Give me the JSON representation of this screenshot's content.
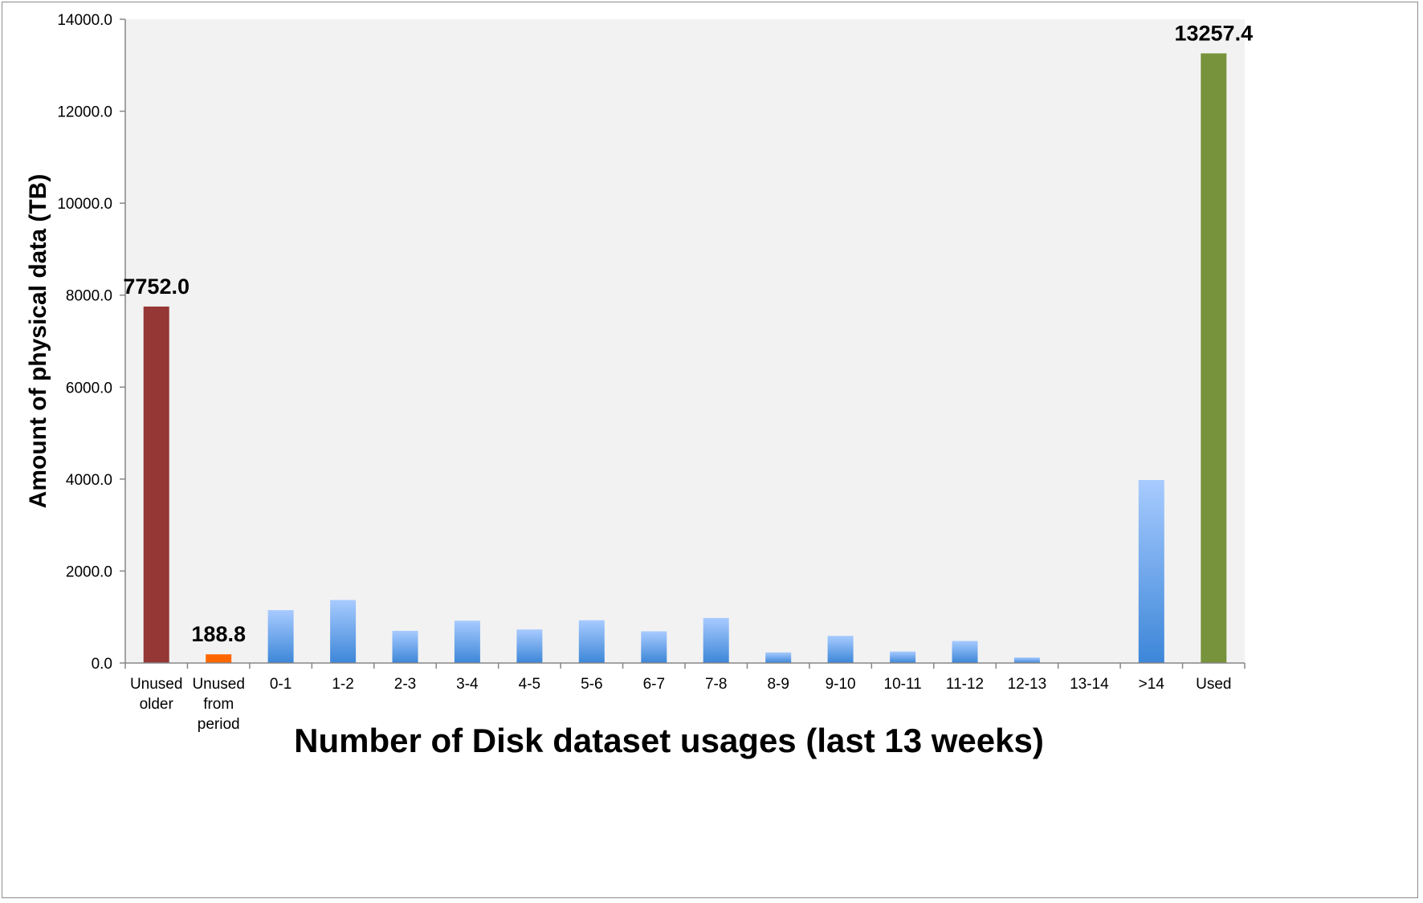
{
  "chart_data": {
    "type": "bar",
    "title": "",
    "xlabel": "Number of Disk dataset usages (last 13 weeks)",
    "ylabel": "Amount of physical data (TB)",
    "ylim": [
      0,
      14000
    ],
    "yticks": [
      "0.0",
      "2000.0",
      "4000.0",
      "6000.0",
      "8000.0",
      "10000.0",
      "12000.0",
      "14000.0"
    ],
    "categories": [
      [
        "Unused",
        "older"
      ],
      [
        "Unused",
        "from",
        "period"
      ],
      [
        "0-1"
      ],
      [
        "1-2"
      ],
      [
        "2-3"
      ],
      [
        "3-4"
      ],
      [
        "4-5"
      ],
      [
        "5-6"
      ],
      [
        "6-7"
      ],
      [
        "7-8"
      ],
      [
        "8-9"
      ],
      [
        "9-10"
      ],
      [
        "10-11"
      ],
      [
        "11-12"
      ],
      [
        "12-13"
      ],
      [
        "13-14"
      ],
      [
        ">14"
      ],
      [
        "Used"
      ]
    ],
    "values": [
      7752.0,
      188.8,
      1150,
      1370,
      700,
      920,
      730,
      930,
      690,
      980,
      230,
      590,
      250,
      480,
      120,
      0,
      3980,
      13257.4
    ],
    "data_labels": [
      "7752.0",
      "188.8",
      "",
      "",
      "",
      "",
      "",
      "",
      "",
      "",
      "",
      "",
      "",
      "",
      "",
      "",
      "",
      "13257.4"
    ],
    "bar_styles": [
      "unused-older",
      "unused-period",
      "usage",
      "usage",
      "usage",
      "usage",
      "usage",
      "usage",
      "usage",
      "usage",
      "usage",
      "usage",
      "usage",
      "usage",
      "usage",
      "usage",
      "usage",
      "used"
    ],
    "colors": {
      "unused-older": "#953735",
      "unused-period": "#ff6600",
      "usage-top": "#a8cbff",
      "usage-bottom": "#3c86d8",
      "used": "#77933c",
      "plot-background": "#f2f2f2",
      "axis": "#868686"
    },
    "grid": false,
    "legend": "none"
  }
}
